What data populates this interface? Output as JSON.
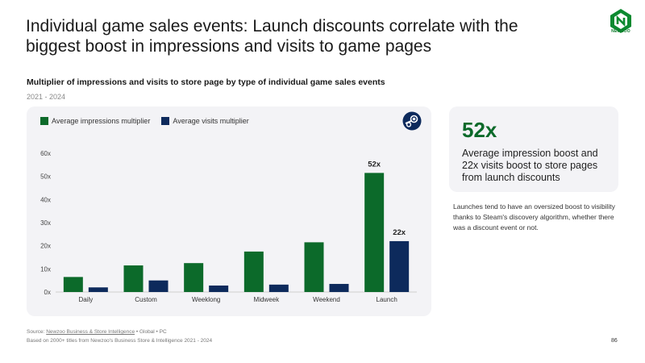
{
  "header": {
    "title": "Individual game sales events: Launch discounts correlate with the biggest boost in impressions and visits to game pages",
    "logo_text": "NEWZOO"
  },
  "chart_header": {
    "subtitle": "Multiplier of impressions and visits to store page by type of individual game sales events",
    "years": "2021 - 2024"
  },
  "colors": {
    "impressions": "#0c6a2a",
    "visits": "#0d2a5c"
  },
  "chart_data": {
    "type": "bar",
    "categories": [
      "Daily",
      "Custom",
      "Weeklong",
      "Midweek",
      "Weekend",
      "Launch"
    ],
    "series": [
      {
        "name": "Average impressions multiplier",
        "values": [
          6.5,
          11.5,
          12.5,
          17.5,
          21.5,
          51.5
        ]
      },
      {
        "name": "Average visits multiplier",
        "values": [
          2,
          5,
          2.8,
          3.2,
          3.5,
          22
        ]
      }
    ],
    "data_labels": [
      {
        "category": "Launch",
        "series": 0,
        "text": "52x"
      },
      {
        "category": "Launch",
        "series": 1,
        "text": "22x"
      }
    ],
    "yticks": [
      "0x",
      "10x",
      "20x",
      "30x",
      "40x",
      "50x",
      "60x"
    ],
    "ylim": [
      0,
      60
    ],
    "legend_position": "top-left",
    "grid": false
  },
  "callout": {
    "value": "52x",
    "text": "Average impression boost and 22x visits boost to store pages from launch discounts"
  },
  "note": "Launches tend to have an oversized boost to visibility thanks to Steam's discovery algorithm, whether there was a discount event or not.",
  "footer": {
    "source_prefix": "Source: ",
    "source_link": "Newzoo Business & Store Intelligence",
    "source_suffix": " • Global • PC",
    "basis": "Based on 2000+ titles from Newzoo's Business Store & Intelligence 2021 - 2024",
    "page": "86"
  }
}
